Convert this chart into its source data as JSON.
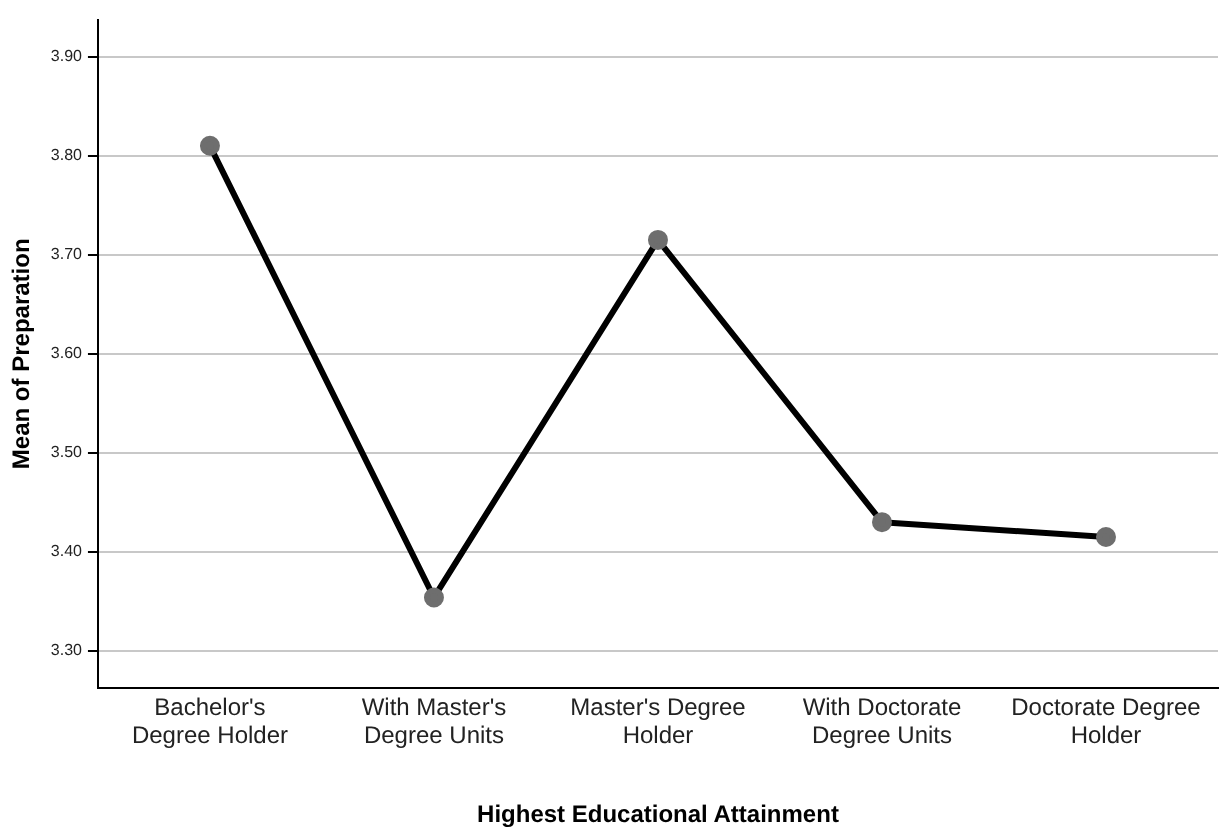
{
  "chart_data": {
    "type": "line",
    "xlabel": "Highest Educational Attainment",
    "ylabel": "Mean of Preparation",
    "categories": [
      "Bachelor's Degree Holder",
      "With Master's Degree Units",
      "Master's Degree Holder",
      "With Doctorate Degree Units",
      "Doctorate Degree Holder"
    ],
    "series": [
      {
        "color": "#000000",
        "values": [
          3.81,
          3.354,
          3.715,
          3.43,
          3.415
        ]
      }
    ],
    "ylim": [
      3.263,
      3.937
    ],
    "yticks": [
      {
        "value": 3.3,
        "label": "3.30"
      },
      {
        "value": 3.4,
        "label": "3.40"
      },
      {
        "value": 3.5,
        "label": "3.50"
      },
      {
        "value": 3.6,
        "label": "3.60"
      },
      {
        "value": 3.7,
        "label": "3.70"
      },
      {
        "value": 3.8,
        "label": "3.80"
      },
      {
        "value": 3.9,
        "label": "3.90"
      }
    ],
    "grid": "y",
    "marker": "circle",
    "line_style": "solid",
    "legend": false
  }
}
